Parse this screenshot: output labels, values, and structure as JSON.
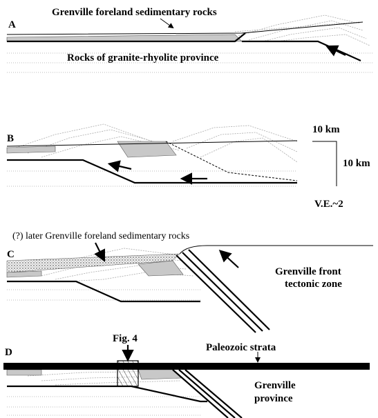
{
  "panels": [
    {
      "label": "A",
      "notes": {
        "sediments": "Grenville foreland sedimentary rocks",
        "basement": "Rocks of granite-rhyolite province"
      }
    },
    {
      "label": "B"
    },
    {
      "label": "C",
      "notes": {
        "later_sediments": "(?) later Grenville foreland sedimentary rocks",
        "front": [
          "Grenville front",
          "tectonic zone"
        ]
      }
    },
    {
      "label": "D",
      "notes": {
        "figure_ref": "Fig. 4",
        "strata": "Paleozoic strata",
        "province": [
          "Grenville",
          "province"
        ]
      }
    }
  ],
  "scale_bar": {
    "horizontal": "10 km",
    "vertical": "10 km",
    "exaggeration": "V.E.~2"
  }
}
